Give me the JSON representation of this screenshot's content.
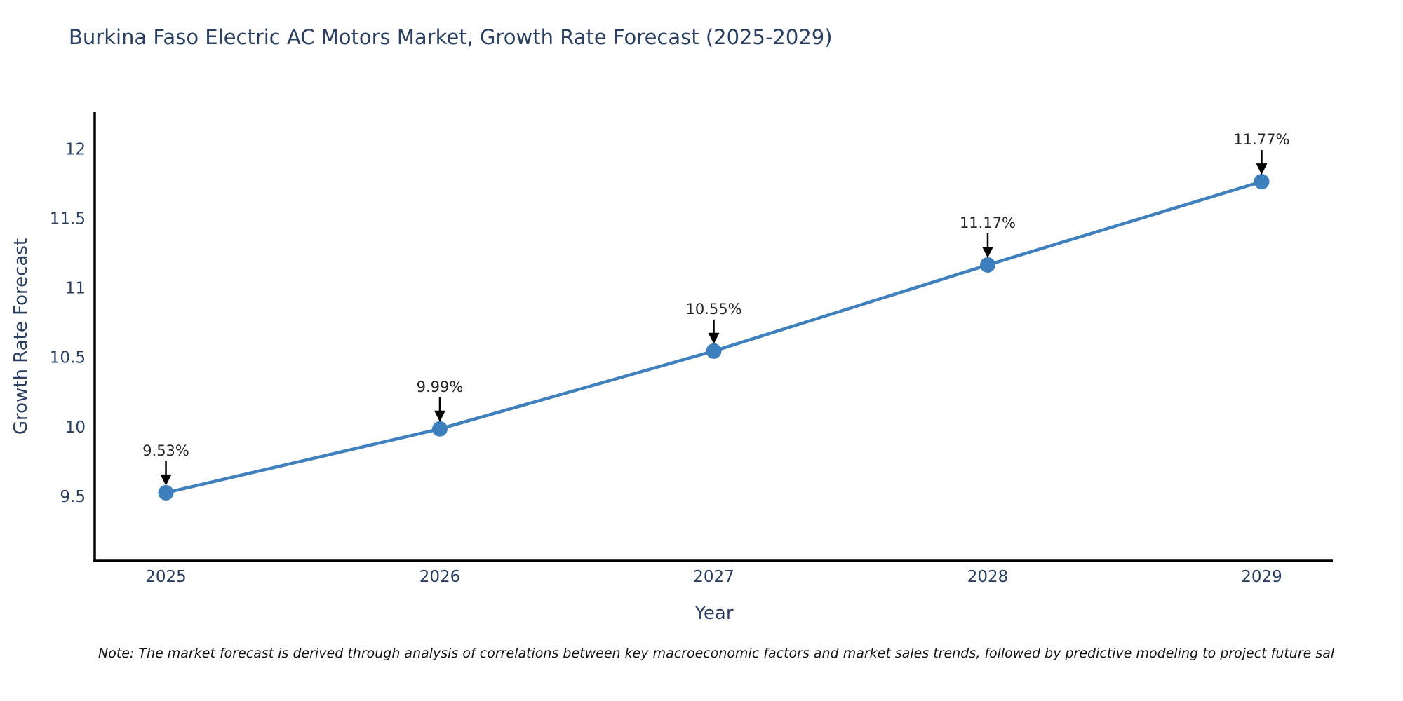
{
  "page": {
    "background": "#ffffff"
  },
  "chart_data": {
    "type": "line",
    "title": "Burkina Faso Electric AC Motors Market, Growth Rate Forecast (2025-2029)",
    "xlabel": "Year",
    "ylabel": "Growth Rate Forecast",
    "x": [
      2025,
      2026,
      2027,
      2028,
      2029
    ],
    "y": [
      9.53,
      9.99,
      10.55,
      11.17,
      11.77
    ],
    "point_labels": [
      "9.53%",
      "9.99%",
      "10.55%",
      "11.17%",
      "11.77%"
    ],
    "x_tick_labels": [
      "2025",
      "2026",
      "2027",
      "2028",
      "2029"
    ],
    "x_ticks": [
      2025,
      2026,
      2027,
      2028,
      2029
    ],
    "y_tick_labels": [
      "9.5",
      "10",
      "10.5",
      "11",
      "11.5",
      "12"
    ],
    "y_ticks": [
      9.5,
      10,
      10.5,
      11,
      11.5,
      12
    ],
    "xlim": [
      2024.74,
      2029.26
    ],
    "ylim": [
      9.04,
      12.27
    ],
    "grid": false,
    "legend": null,
    "colors": {
      "line": "#4081bd",
      "marker": "#3d7ebd",
      "axis": "#000000",
      "title": "#2a3f5f",
      "tick": "#2a3f5f",
      "annotation": "#262626",
      "arrow": "#000000"
    }
  },
  "note": {
    "text": "Note: The market forecast is derived through analysis of correlations between key macroeconomic factors and market sales trends, followed by predictive modeling to project future sal"
  }
}
